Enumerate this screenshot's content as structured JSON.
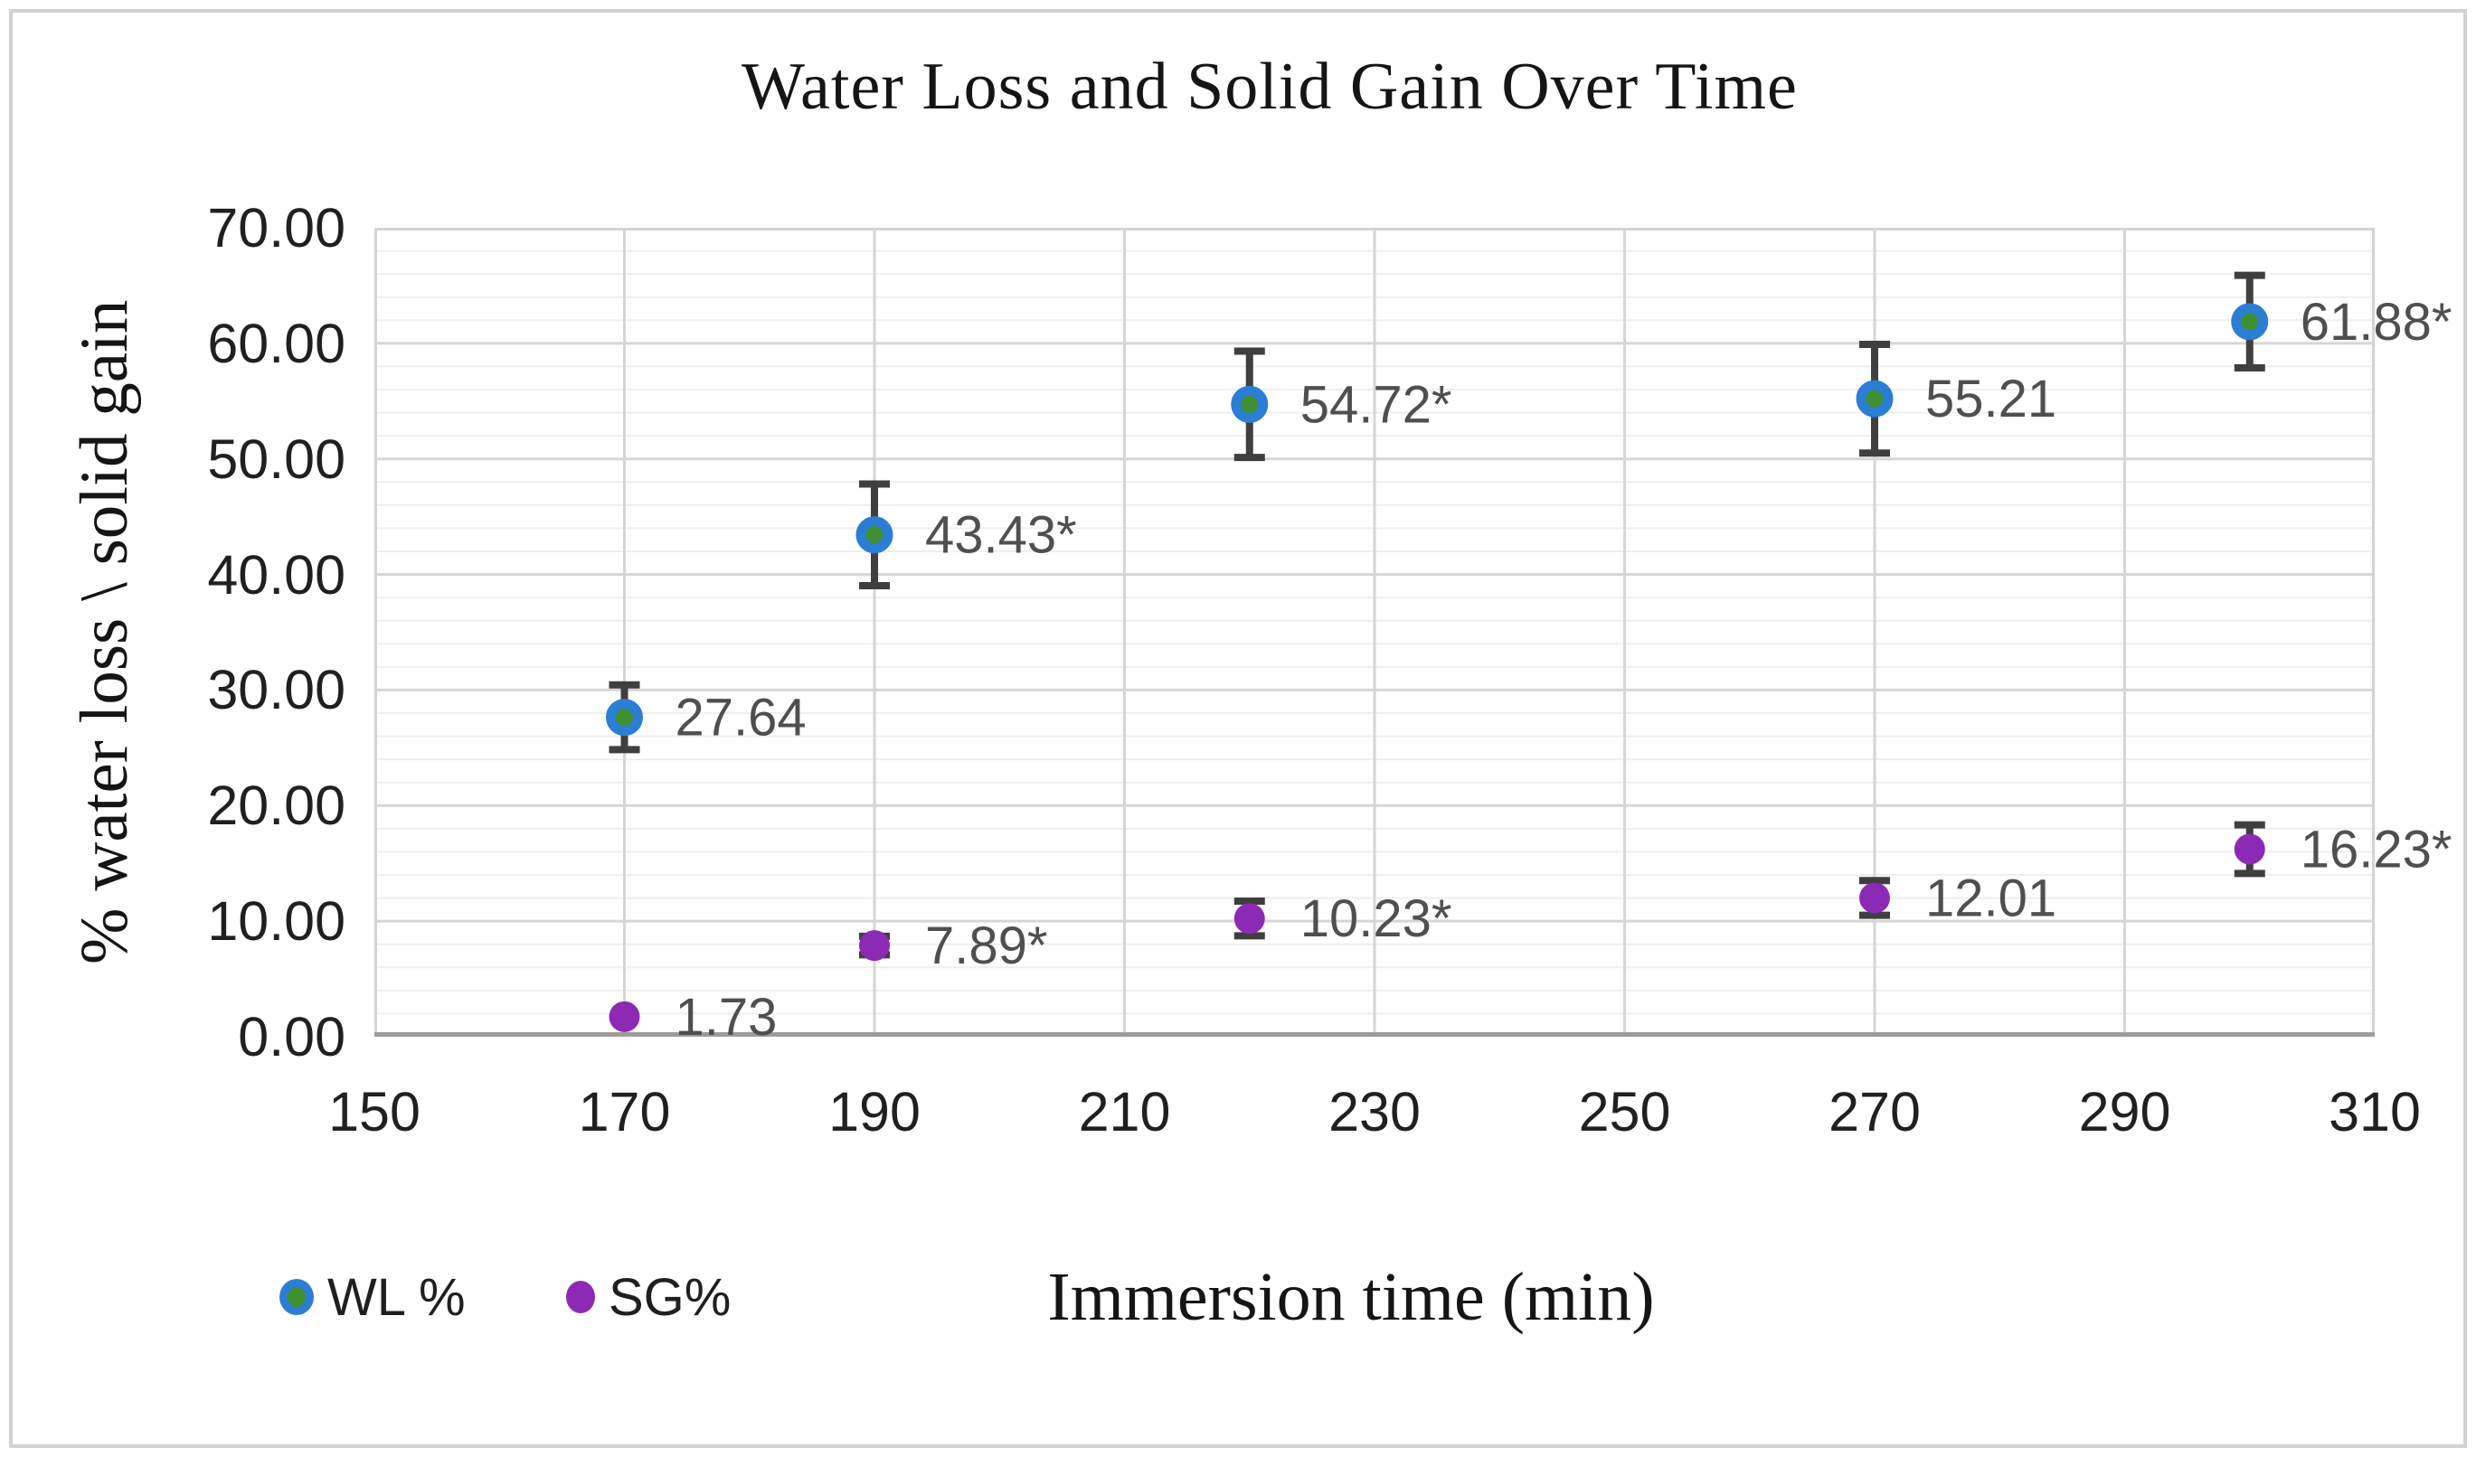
{
  "chart_data": {
    "type": "scatter",
    "title": "Water Loss and Solid Gain Over Time",
    "xlabel": "Immersion time (min)",
    "ylabel": "% water loss \\ solid gain",
    "xlim": [
      150,
      310
    ],
    "ylim": [
      0,
      70
    ],
    "x_tick_values": [
      150,
      170,
      190,
      210,
      230,
      250,
      270,
      290,
      310
    ],
    "x_tick_labels": [
      "150",
      "170",
      "190",
      "210",
      "230",
      "250",
      "270",
      "290",
      "310"
    ],
    "y_tick_values": [
      0,
      10,
      20,
      30,
      40,
      50,
      60,
      70
    ],
    "y_tick_labels": [
      "0.00",
      "10.00",
      "20.00",
      "30.00",
      "40.00",
      "50.00",
      "60.00",
      "70.00"
    ],
    "grid": {
      "minor_y_step": 2,
      "major_y_step": 10,
      "major_x_step": 20,
      "minor_horizontal": true
    },
    "legend_position": "bottom-left",
    "series": [
      {
        "name": "WL %",
        "marker": "circle-ringed",
        "marker_fill": "#3f9032",
        "marker_ring": "#2b7ed3",
        "points": [
          {
            "x": 170,
            "y": 27.64,
            "label": "27.64",
            "err": 2.8
          },
          {
            "x": 190,
            "y": 43.43,
            "label": "43.43*",
            "err": 4.4
          },
          {
            "x": 220,
            "y": 54.72,
            "label": "54.72*",
            "err": 4.6
          },
          {
            "x": 270,
            "y": 55.21,
            "label": "55.21",
            "err": 4.7
          },
          {
            "x": 300,
            "y": 61.88,
            "label": "61.88*",
            "err": 4.0
          }
        ]
      },
      {
        "name": "SG%",
        "marker": "circle",
        "marker_fill": "#8d2ab5",
        "marker_ring": "none",
        "points": [
          {
            "x": 170,
            "y": 1.73,
            "label": "1.73",
            "err": 0
          },
          {
            "x": 190,
            "y": 7.89,
            "label": "7.89*",
            "err": 0.8
          },
          {
            "x": 220,
            "y": 10.23,
            "label": "10.23*",
            "err": 1.5
          },
          {
            "x": 270,
            "y": 12.01,
            "label": "12.01",
            "err": 1.5
          },
          {
            "x": 300,
            "y": 16.23,
            "label": "16.23*",
            "err": 2.1
          }
        ]
      }
    ],
    "colors": {
      "grid_minor": "#efefef",
      "grid_major": "#d6d6d6",
      "plot_border": "#d4d4d4",
      "axis_line": "#9c9c9c",
      "error_bar": "#3f3f3f",
      "tick_label": "#202020",
      "data_label": "#4f4f4f",
      "title": "#151515"
    }
  }
}
